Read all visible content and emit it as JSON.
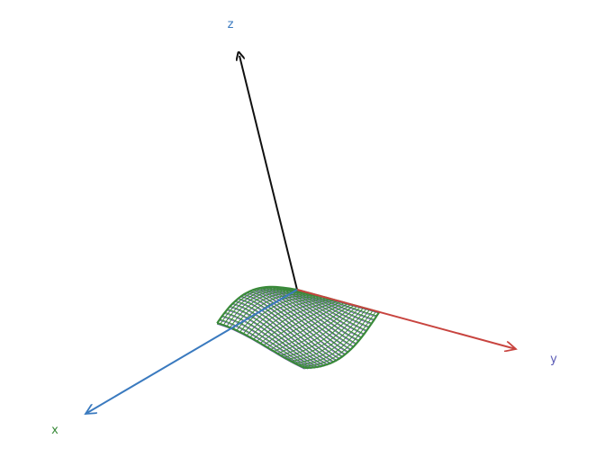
{
  "axes": {
    "x": {
      "label": "x",
      "color": "#3a8a3a",
      "line_color": "#3a7abf"
    },
    "y": {
      "label": "y",
      "color": "#5a5ab5",
      "line_color": "#c8443f"
    },
    "z": {
      "label": "z",
      "color": "#3a7abf",
      "line_color": "#111111"
    }
  },
  "surface": {
    "type": "wireframe",
    "function": "sin(x)*cos(y)",
    "line_color": "#3a8a3a",
    "underside_color": "#7a52c4"
  }
}
